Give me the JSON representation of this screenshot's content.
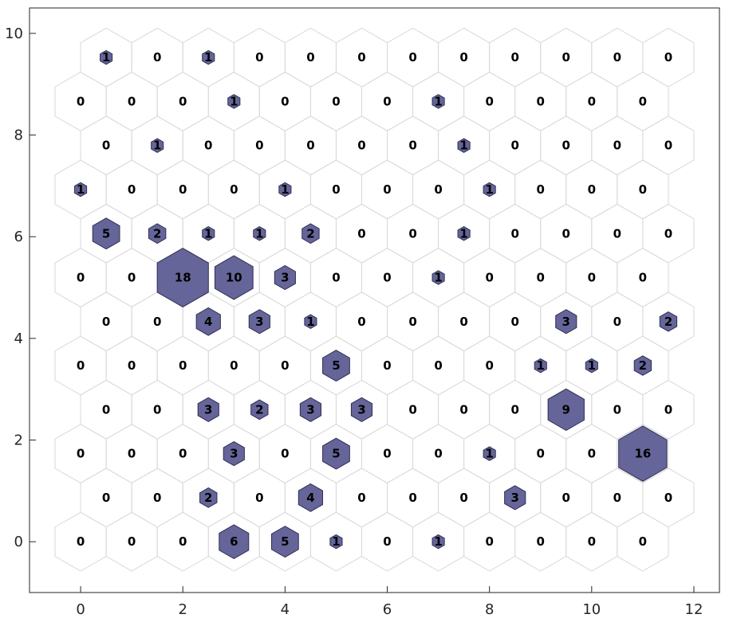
{
  "chart_data": {
    "type": "hexagon_hits",
    "xlim": [
      -1,
      12.5
    ],
    "ylim": [
      -1,
      10.5
    ],
    "x_ticks": [
      0,
      2,
      4,
      6,
      8,
      10,
      12
    ],
    "y_ticks": [
      0,
      2,
      4,
      6,
      8,
      10
    ],
    "x_tick_labels": [
      "0",
      "2",
      "4",
      "6",
      "8",
      "10",
      "12"
    ],
    "y_tick_labels": [
      "0",
      "2",
      "4",
      "6",
      "8",
      "10"
    ],
    "grid_columns": 12,
    "grid_rows": 12,
    "max_hits": 18,
    "hits": [
      [
        0,
        0,
        0,
        6,
        5,
        1,
        0,
        1,
        0,
        0,
        0,
        0
      ],
      [
        0,
        0,
        2,
        0,
        4,
        0,
        0,
        0,
        3,
        0,
        0,
        0
      ],
      [
        0,
        0,
        0,
        3,
        0,
        5,
        0,
        0,
        1,
        0,
        0,
        16
      ],
      [
        0,
        0,
        3,
        2,
        3,
        3,
        0,
        0,
        0,
        9,
        0,
        0
      ],
      [
        0,
        0,
        0,
        0,
        0,
        5,
        0,
        0,
        0,
        1,
        1,
        2
      ],
      [
        0,
        0,
        4,
        3,
        1,
        0,
        0,
        0,
        0,
        3,
        0,
        2
      ],
      [
        0,
        0,
        18,
        10,
        3,
        0,
        0,
        1,
        0,
        0,
        0,
        0
      ],
      [
        5,
        2,
        1,
        1,
        2,
        0,
        0,
        1,
        0,
        0,
        0,
        0
      ],
      [
        1,
        0,
        0,
        0,
        1,
        0,
        0,
        0,
        1,
        0,
        0,
        0
      ],
      [
        0,
        1,
        0,
        0,
        0,
        0,
        0,
        1,
        0,
        0,
        0,
        0
      ],
      [
        0,
        0,
        0,
        1,
        0,
        0,
        0,
        1,
        0,
        0,
        0,
        0
      ],
      [
        1,
        0,
        1,
        0,
        0,
        0,
        0,
        0,
        0,
        0,
        0,
        0
      ]
    ],
    "colors": {
      "cell_outline": "#d9d9d9",
      "hit_fill": "#65659a",
      "hit_stroke": "#2f2f55",
      "axis": "#262626"
    }
  }
}
